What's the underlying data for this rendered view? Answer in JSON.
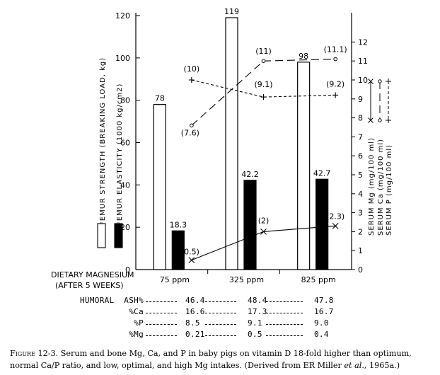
{
  "chart_data": {
    "type": "bar",
    "categories": [
      "75 ppm",
      "325 ppm",
      "825 ppm"
    ],
    "series": [
      {
        "name": "FEMUR STRENGTH (BREAKING LOAD, kg)",
        "values": [
          78,
          119,
          98
        ],
        "fill": "#ffffff"
      },
      {
        "name": "FEMUR ELASTICITY (1000 kg/cm2)",
        "values": [
          18.3,
          42.2,
          42.7
        ],
        "fill": "#000000"
      }
    ],
    "bar_labels": [
      "78",
      "119",
      "98",
      "18.3",
      "42.2",
      "42.7"
    ],
    "y_left": {
      "ticks": [
        0,
        20,
        40,
        60,
        80,
        100,
        120
      ],
      "range": [
        0,
        120
      ]
    },
    "y_right": {
      "ticks": [
        0,
        1,
        2,
        3,
        4,
        5,
        6,
        7,
        8,
        9,
        10,
        11,
        12
      ],
      "range": [
        0,
        13
      ],
      "labels": [
        "SERUM Mg (mg/100 ml)",
        "SERUM Ca (mg/100 ml)",
        "SERUM P (mg/100 ml)"
      ]
    },
    "lines": [
      {
        "name": "SERUM Ca",
        "style": "long-dash",
        "marker": "circle",
        "values": [
          7.6,
          11,
          11.1
        ],
        "labels": [
          "(7.6)",
          "(11)",
          "(11.1)"
        ]
      },
      {
        "name": "SERUM P",
        "style": "short-dash",
        "marker": "plus",
        "values": [
          10,
          9.1,
          9.2
        ],
        "labels": [
          "(10)",
          "(9.1)",
          "(9.2)"
        ]
      },
      {
        "name": "SERUM Mg",
        "style": "solid",
        "marker": "x",
        "values": [
          0.5,
          2,
          2.3
        ],
        "labels": [
          "(0.5)",
          "(2)",
          "(2.3)"
        ]
      }
    ],
    "xlabel_lines": [
      "DIETARY MAGNESIUM",
      "(AFTER 5 WEEKS)"
    ]
  },
  "humoral": [
    {
      "label": "HUMORAL  ASH%",
      "values": [
        "46.4",
        "48.4",
        "47.8"
      ]
    },
    {
      "label": "%Ca",
      "values": [
        "16.6",
        "17.3",
        "16.7"
      ]
    },
    {
      "label": "%P",
      "values": [
        "8.5",
        "9.1",
        "9.0"
      ]
    },
    {
      "label": "%Mg",
      "values": [
        "0.21",
        "0.5",
        "0.4"
      ]
    }
  ],
  "caption": {
    "figure_label": "Figure 12-3.",
    "text": " Serum and bone Mg, Ca, and P in baby pigs on vitamin D 18-fold higher than optimum, normal Ca/P ratio, and low, optimal, and high Mg intakes. (Derived from ER Miller ",
    "italic": "et al.,",
    "tail": " 1965a.)"
  }
}
